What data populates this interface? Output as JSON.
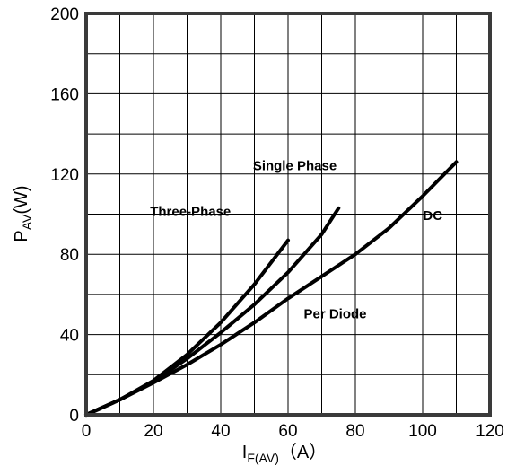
{
  "chart_data": {
    "type": "line",
    "xlabel": {
      "main": "I",
      "sub": "F(AV)",
      "unit": "（A）"
    },
    "ylabel": {
      "main": "P",
      "sub": "AV",
      "unit": "(W)"
    },
    "xlim": [
      0,
      120
    ],
    "ylim": [
      0,
      200
    ],
    "xticks": [
      0,
      20,
      40,
      60,
      80,
      100,
      120
    ],
    "yticks": [
      0,
      40,
      80,
      120,
      160,
      200
    ],
    "x_grid_step": 10,
    "y_grid_step": 20,
    "grid": true,
    "series": [
      {
        "name": "Three-Phase",
        "x": [
          0,
          10,
          20,
          30,
          40,
          50,
          60
        ],
        "y": [
          0,
          7.5,
          17,
          30,
          46,
          65,
          87
        ]
      },
      {
        "name": "Single Phase",
        "x": [
          0,
          10,
          20,
          30,
          40,
          50,
          60,
          70,
          75
        ],
        "y": [
          0,
          7.5,
          16.5,
          28,
          41,
          55,
          71,
          90,
          103
        ]
      },
      {
        "name": "DC",
        "x": [
          0,
          10,
          20,
          30,
          40,
          50,
          60,
          70,
          80,
          90,
          100,
          110
        ],
        "y": [
          0,
          7.5,
          16,
          25,
          35,
          46,
          58,
          69,
          80,
          93,
          109,
          126
        ]
      }
    ],
    "annotations": [
      {
        "text": "Three-Phase",
        "x": 31,
        "y": 99
      },
      {
        "text": "Single Phase",
        "x": 62,
        "y": 122
      },
      {
        "text": "DC",
        "x": 103,
        "y": 97
      },
      {
        "text": "Per Diode",
        "x": 74,
        "y": 48
      }
    ]
  }
}
